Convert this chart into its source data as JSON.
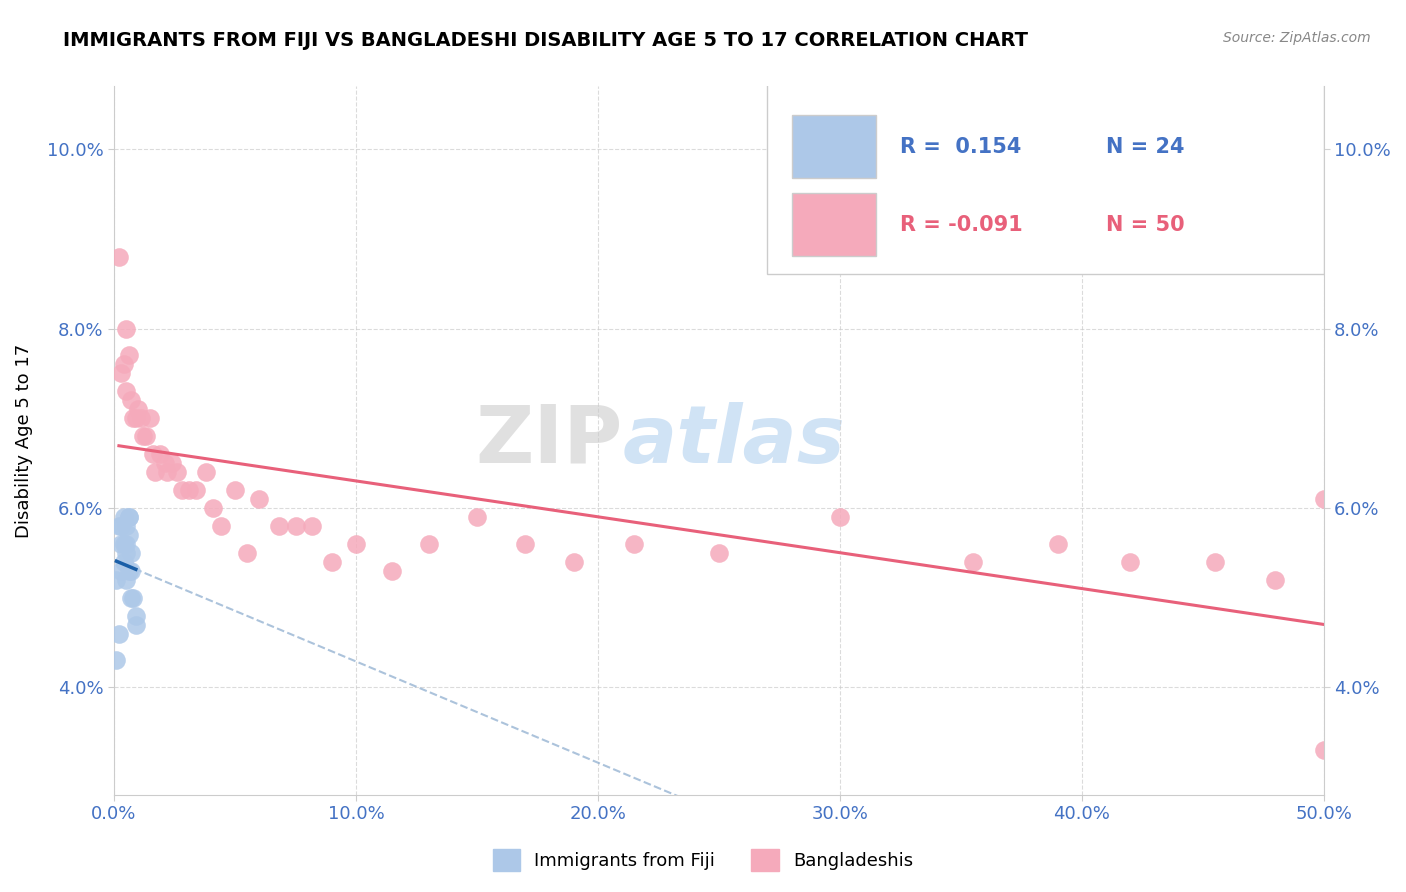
{
  "title": "IMMIGRANTS FROM FIJI VS BANGLADESHI DISABILITY AGE 5 TO 17 CORRELATION CHART",
  "source": "Source: ZipAtlas.com",
  "ylabel": "Disability Age 5 to 17",
  "xlim": [
    0.0,
    0.5
  ],
  "ylim": [
    0.028,
    0.107
  ],
  "xticks": [
    0.0,
    0.1,
    0.2,
    0.3,
    0.4,
    0.5
  ],
  "yticks": [
    0.04,
    0.06,
    0.08,
    0.1
  ],
  "xticklabels": [
    "0.0%",
    "10.0%",
    "20.0%",
    "30.0%",
    "40.0%",
    "50.0%"
  ],
  "yticklabels": [
    "4.0%",
    "6.0%",
    "8.0%",
    "10.0%"
  ],
  "legend_blue_r": "R =  0.154",
  "legend_blue_n": "N = 24",
  "legend_pink_r": "R = -0.091",
  "legend_pink_n": "N = 50",
  "watermark_zip": "ZIP",
  "watermark_atlas": "atlas",
  "blue_color": "#adc8e8",
  "pink_color": "#f5aabb",
  "blue_line_color": "#1a5fa8",
  "pink_line_color": "#e8607a",
  "blue_dashed_color": "#90afd0",
  "fiji_x": [
    0.001,
    0.001,
    0.002,
    0.002,
    0.003,
    0.003,
    0.003,
    0.004,
    0.004,
    0.004,
    0.005,
    0.005,
    0.005,
    0.005,
    0.006,
    0.006,
    0.006,
    0.006,
    0.007,
    0.007,
    0.007,
    0.008,
    0.009,
    0.009
  ],
  "fiji_y": [
    0.052,
    0.043,
    0.058,
    0.046,
    0.058,
    0.056,
    0.053,
    0.059,
    0.056,
    0.054,
    0.058,
    0.056,
    0.055,
    0.052,
    0.059,
    0.059,
    0.057,
    0.053,
    0.055,
    0.053,
    0.05,
    0.05,
    0.048,
    0.047
  ],
  "bang_x": [
    0.002,
    0.003,
    0.004,
    0.005,
    0.005,
    0.006,
    0.007,
    0.008,
    0.009,
    0.01,
    0.011,
    0.012,
    0.013,
    0.015,
    0.016,
    0.017,
    0.019,
    0.021,
    0.022,
    0.024,
    0.026,
    0.028,
    0.031,
    0.034,
    0.038,
    0.041,
    0.044,
    0.05,
    0.055,
    0.06,
    0.068,
    0.075,
    0.082,
    0.09,
    0.1,
    0.115,
    0.13,
    0.15,
    0.17,
    0.19,
    0.215,
    0.25,
    0.3,
    0.355,
    0.39,
    0.42,
    0.455,
    0.48,
    0.5,
    0.5
  ],
  "bang_y": [
    0.088,
    0.075,
    0.076,
    0.08,
    0.073,
    0.077,
    0.072,
    0.07,
    0.07,
    0.071,
    0.07,
    0.068,
    0.068,
    0.07,
    0.066,
    0.064,
    0.066,
    0.065,
    0.064,
    0.065,
    0.064,
    0.062,
    0.062,
    0.062,
    0.064,
    0.06,
    0.058,
    0.062,
    0.055,
    0.061,
    0.058,
    0.058,
    0.058,
    0.054,
    0.056,
    0.053,
    0.056,
    0.059,
    0.056,
    0.054,
    0.056,
    0.055,
    0.059,
    0.054,
    0.056,
    0.054,
    0.054,
    0.052,
    0.033,
    0.061
  ]
}
